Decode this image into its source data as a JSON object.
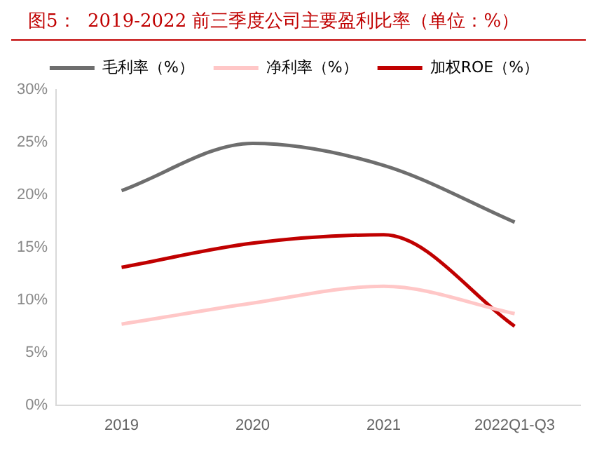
{
  "chart_data": {
    "type": "line",
    "title": "图5：  2019-2022 前三季度公司主要盈利比率（单位：%）",
    "categories": [
      "2019",
      "2020",
      "2021",
      "2022Q1-Q3"
    ],
    "series": [
      {
        "name": "毛利率（%）",
        "color": "#6e6e6e",
        "values": [
          20.4,
          24.9,
          22.8,
          17.4
        ]
      },
      {
        "name": "净利率（%）",
        "color": "#ffc7c7",
        "values": [
          7.7,
          9.7,
          11.3,
          8.7
        ]
      },
      {
        "name": "加权ROE（%）",
        "color": "#c00000",
        "values": [
          13.1,
          15.4,
          16.2,
          7.5
        ]
      }
    ],
    "ylim": [
      0,
      30
    ],
    "yticks": [
      {
        "value": 0,
        "label": "0%"
      },
      {
        "value": 5,
        "label": "5%"
      },
      {
        "value": 10,
        "label": "10%"
      },
      {
        "value": 15,
        "label": "15%"
      },
      {
        "value": 20,
        "label": "20%"
      },
      {
        "value": 25,
        "label": "25%"
      },
      {
        "value": 30,
        "label": "30%"
      }
    ],
    "grid": false,
    "legend": "top",
    "marker": "none",
    "line_style": "solid"
  }
}
